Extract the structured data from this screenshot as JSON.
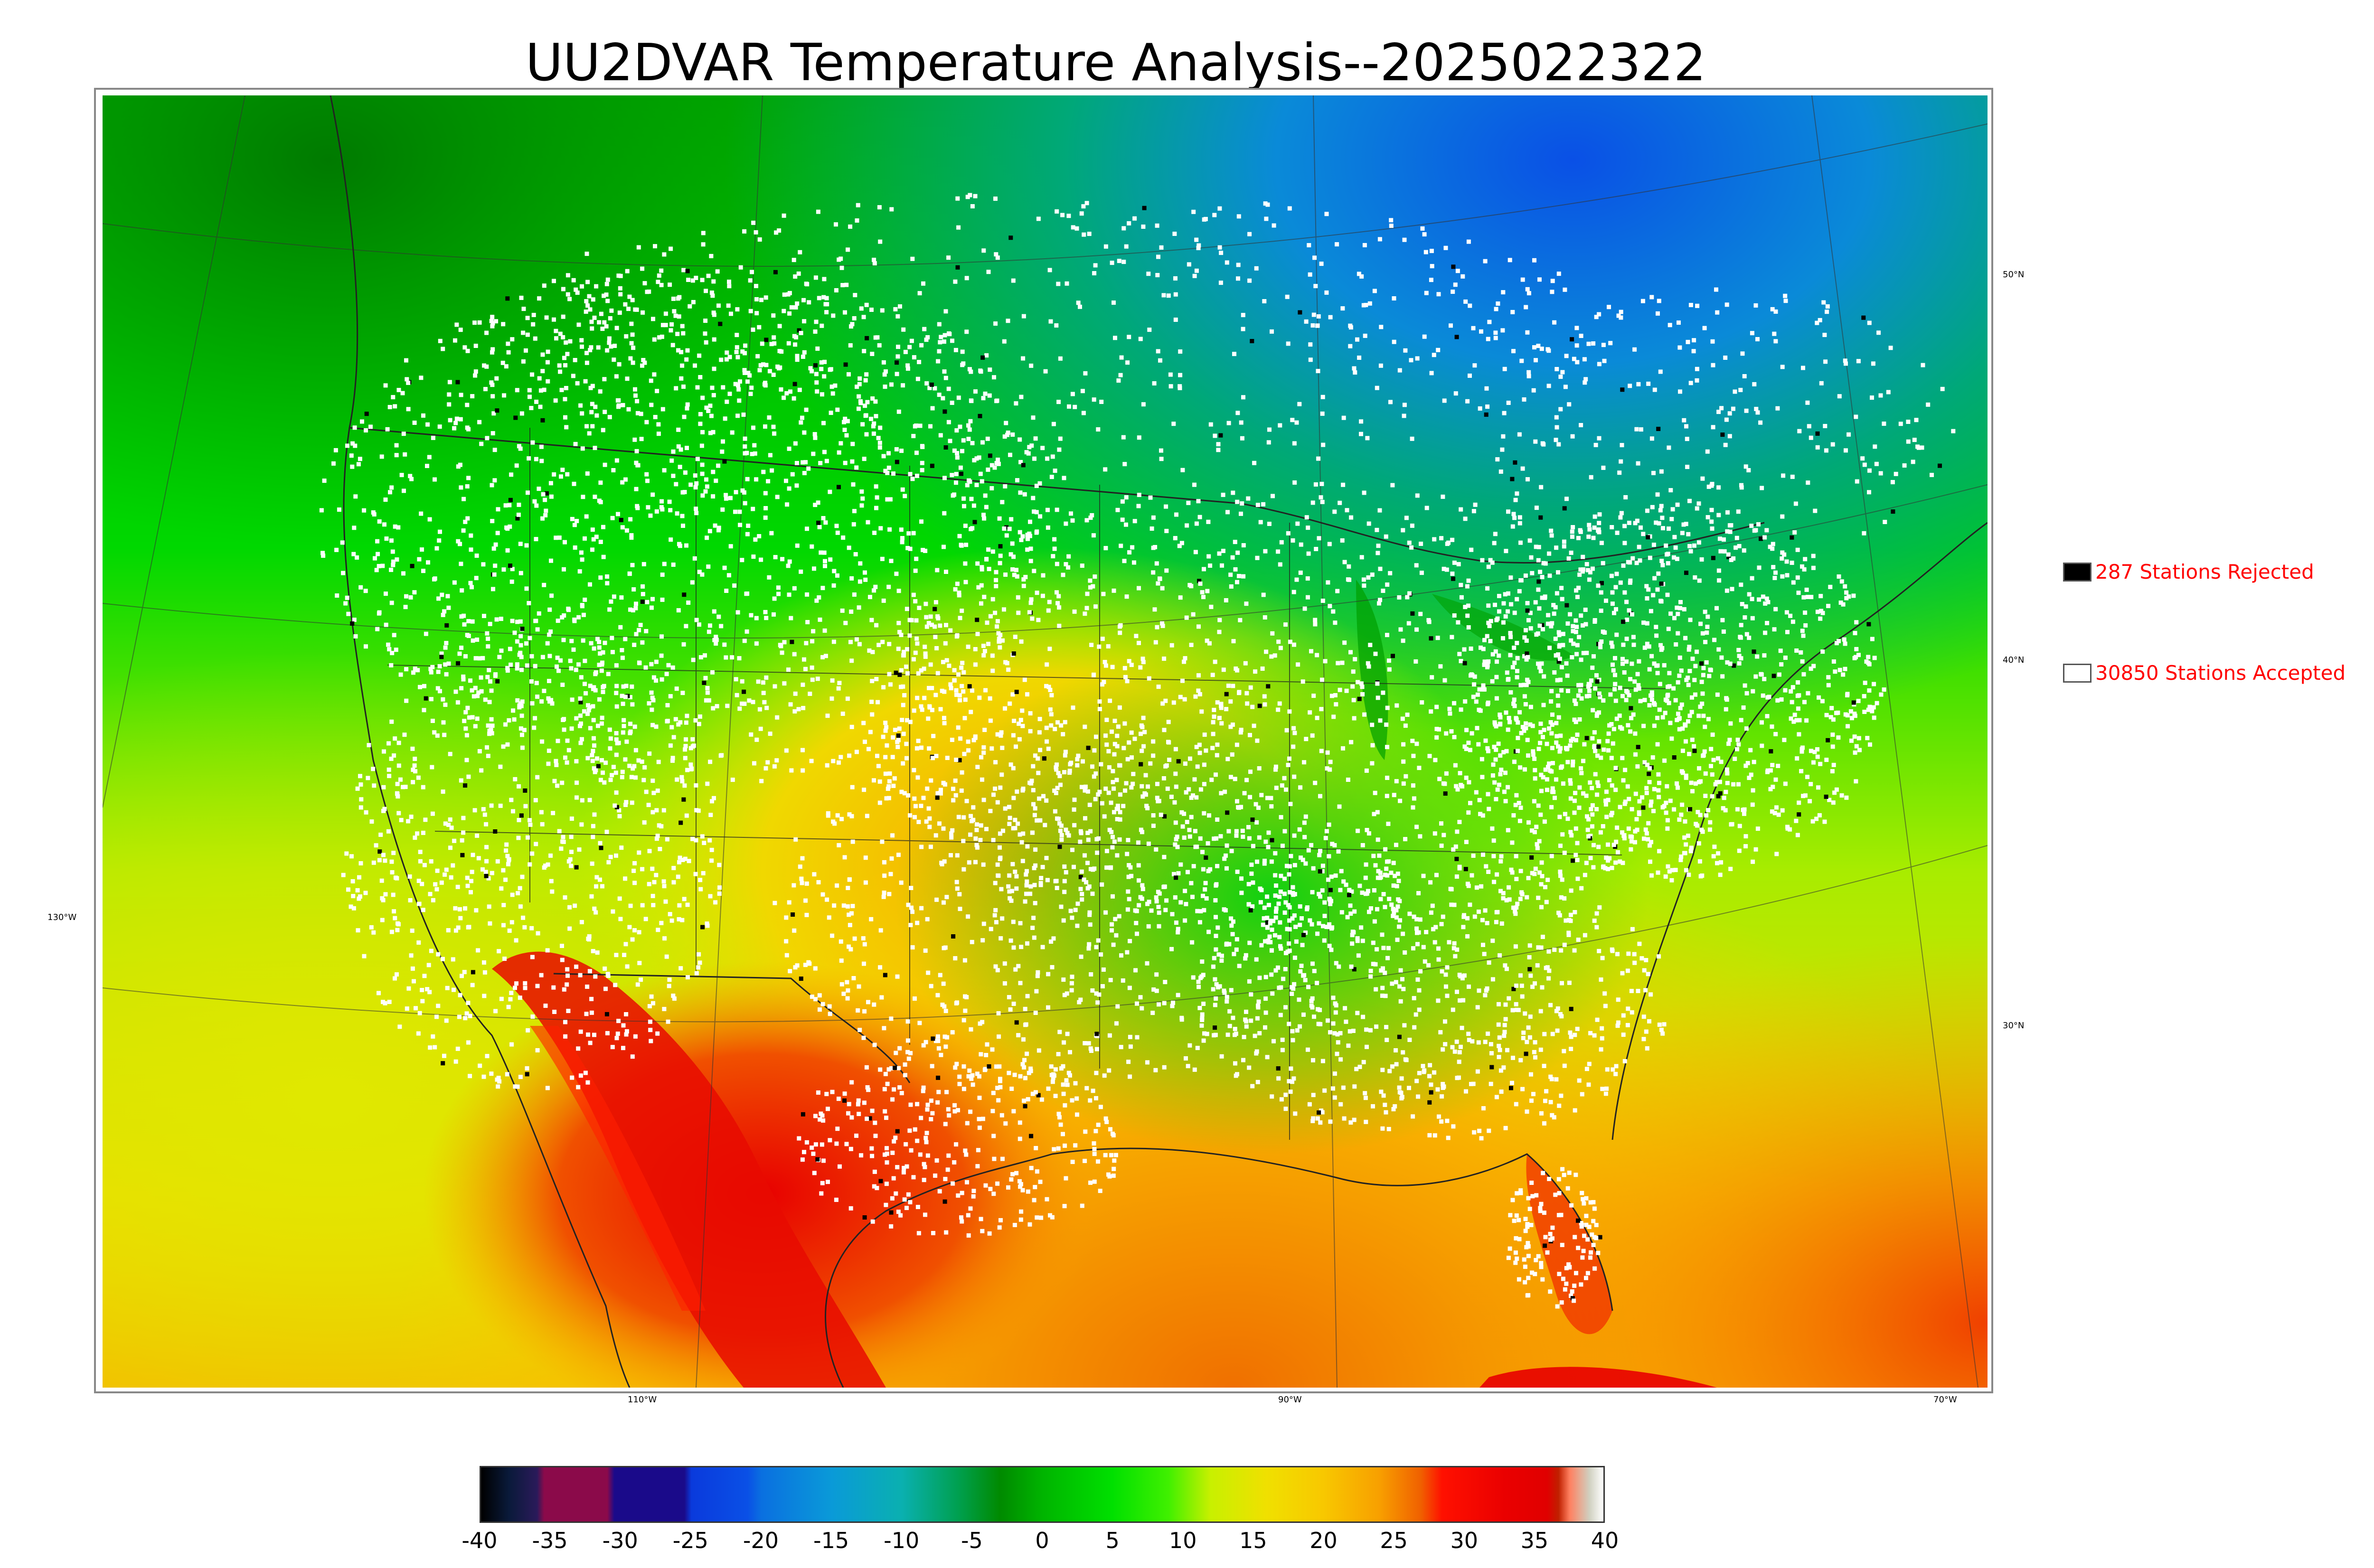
{
  "title": "UU2DVAR Temperature Analysis--2025022322",
  "legend": {
    "rejected": {
      "label": "287 Stations Rejected",
      "swatch": "#000000"
    },
    "accepted": {
      "label": "30850 Stations Accepted",
      "swatch": "#ffffff"
    },
    "text_color": "#ff0000"
  },
  "lat_labels": [
    "50°N",
    "40°N",
    "30°N"
  ],
  "lon_labels": [
    "130°W",
    "110°W",
    "90°W",
    "70°W"
  ],
  "colorbar": {
    "min": -40,
    "max": 40,
    "ticks": [
      "-40",
      "-35",
      "-30",
      "-25",
      "-20",
      "-15",
      "-10",
      "-5",
      "0",
      "5",
      "10",
      "15",
      "20",
      "25",
      "30",
      "35",
      "40"
    ],
    "stops": [
      {
        "v": -40,
        "c": "#000000"
      },
      {
        "v": -38,
        "c": "#0a1a3a"
      },
      {
        "v": -36,
        "c": "#2a1a5a"
      },
      {
        "v": -35.5,
        "c": "#8b0a4a"
      },
      {
        "v": -31,
        "c": "#8b0a4a"
      },
      {
        "v": -30.5,
        "c": "#1a0a8a"
      },
      {
        "v": -25.5,
        "c": "#1a0a8a"
      },
      {
        "v": -25,
        "c": "#0a3adc"
      },
      {
        "v": -21,
        "c": "#0a50e6"
      },
      {
        "v": -20,
        "c": "#0a70e0"
      },
      {
        "v": -15,
        "c": "#0a9ad8"
      },
      {
        "v": -10,
        "c": "#0ab0b0"
      },
      {
        "v": -6,
        "c": "#00a050"
      },
      {
        "v": -3,
        "c": "#008a00"
      },
      {
        "v": 0,
        "c": "#00b400"
      },
      {
        "v": 5,
        "c": "#00e000"
      },
      {
        "v": 9,
        "c": "#40f000"
      },
      {
        "v": 12,
        "c": "#c8f000"
      },
      {
        "v": 16,
        "c": "#f0e000"
      },
      {
        "v": 20,
        "c": "#f8c800"
      },
      {
        "v": 24,
        "c": "#f8a000"
      },
      {
        "v": 27,
        "c": "#f06000"
      },
      {
        "v": 28.5,
        "c": "#ff1000"
      },
      {
        "v": 33,
        "c": "#ea0000"
      },
      {
        "v": 36,
        "c": "#e00000"
      },
      {
        "v": 36.8,
        "c": "#c02000"
      },
      {
        "v": 37.6,
        "c": "#ff8060"
      },
      {
        "v": 39,
        "c": "#d0d0c0"
      },
      {
        "v": 40,
        "c": "#ffffff"
      }
    ]
  }
}
